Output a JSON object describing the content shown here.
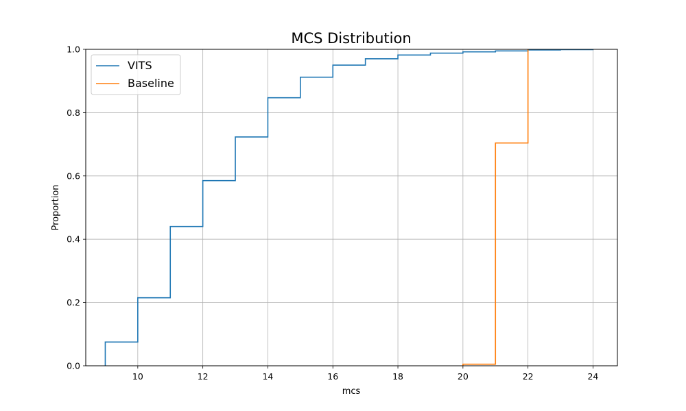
{
  "chart_data": {
    "type": "line",
    "step": true,
    "title": "MCS Distribution",
    "xlabel": "mcs",
    "ylabel": "Proportion",
    "xlim": [
      8.4,
      24.75
    ],
    "ylim": [
      0,
      1.0
    ],
    "xticks": [
      10,
      12,
      14,
      16,
      18,
      20,
      22,
      24
    ],
    "yticks": [
      0.0,
      0.2,
      0.4,
      0.6,
      0.8,
      1.0
    ],
    "grid": true,
    "legend_position": "upper-left",
    "series": [
      {
        "name": "VITS",
        "color": "#1f77b4",
        "x": [
          9,
          10,
          11,
          12,
          13,
          14,
          15,
          16,
          17,
          18,
          19,
          20,
          21,
          22,
          23,
          24
        ],
        "y": [
          0.075,
          0.215,
          0.44,
          0.585,
          0.723,
          0.847,
          0.912,
          0.95,
          0.97,
          0.982,
          0.988,
          0.992,
          0.995,
          0.998,
          0.999,
          1.0
        ]
      },
      {
        "name": "Baseline",
        "color": "#ff7f0e",
        "x": [
          20,
          21,
          22
        ],
        "y": [
          0.005,
          0.704,
          1.0
        ]
      }
    ]
  }
}
